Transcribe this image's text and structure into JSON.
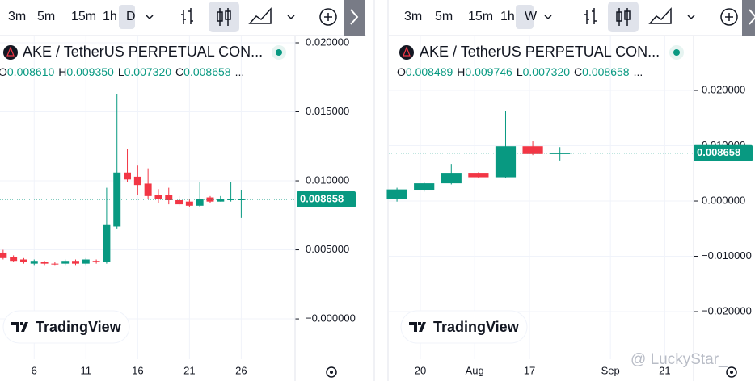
{
  "chart_data": [
    {
      "type": "candlestick",
      "intervals": [
        "3m",
        "5m",
        "15m",
        "1h",
        "D"
      ],
      "active_interval": 4,
      "title": "AKE / TetherUS PERPETUAL CON...",
      "ohlc_legend": [
        {
          "key": "O",
          "value": "0.008610"
        },
        {
          "key": "H",
          "value": "0.009350"
        },
        {
          "key": "L",
          "value": "0.007320"
        },
        {
          "key": "C",
          "value": "0.008658"
        }
      ],
      "legend_more": "...",
      "logo": "TradingView",
      "up_color": "#089981",
      "down_color": "#f23645",
      "grid": true,
      "x": [
        3,
        4,
        5,
        6,
        7,
        8,
        9,
        10,
        11,
        12,
        13,
        14,
        15,
        16,
        17,
        18,
        19,
        20,
        21,
        22,
        23,
        24,
        25,
        26
      ],
      "open": [
        0.0048,
        0.0045,
        0.0043,
        0.004,
        0.0041,
        0.004,
        0.004,
        0.0042,
        0.004,
        0.0042,
        0.0041,
        0.0067,
        0.0106,
        0.0103,
        0.0098,
        0.009,
        0.009,
        0.0086,
        0.0085,
        0.0082,
        0.0088,
        0.0085,
        0.0086,
        0.00861
      ],
      "high": [
        0.005,
        0.0046,
        0.0044,
        0.0043,
        0.0042,
        0.0041,
        0.0043,
        0.0043,
        0.0044,
        0.0043,
        0.0095,
        0.0163,
        0.0123,
        0.0111,
        0.0109,
        0.0094,
        0.0095,
        0.0089,
        0.0087,
        0.0099,
        0.0089,
        0.0089,
        0.0099,
        0.00935
      ],
      "low": [
        0.0043,
        0.0041,
        0.004,
        0.0039,
        0.0039,
        0.0039,
        0.0039,
        0.0039,
        0.0039,
        0.004,
        0.004,
        0.0065,
        0.0099,
        0.009,
        0.0087,
        0.0084,
        0.0083,
        0.0082,
        0.0081,
        0.0081,
        0.0084,
        0.0085,
        0.0085,
        0.00732
      ],
      "close": [
        0.0044,
        0.0042,
        0.0041,
        0.0042,
        0.004,
        0.00398,
        0.0042,
        0.004,
        0.0043,
        0.0041,
        0.0068,
        0.0106,
        0.0101,
        0.0097,
        0.0089,
        0.0087,
        0.0086,
        0.0083,
        0.0082,
        0.0087,
        0.0085,
        0.0087,
        0.00866,
        0.008658
      ],
      "xlim": [
        2.7,
        31.2
      ],
      "xticks": [
        6,
        11,
        16,
        21,
        26
      ],
      "ylim": [
        -0.00292,
        0.020526
      ],
      "yticks": [
        {
          "value": 0.02,
          "label": "0.020000"
        },
        {
          "value": 0.015,
          "label": "0.015000"
        },
        {
          "value": 0.01,
          "label": "0.010000"
        },
        {
          "value": 0.005,
          "label": "0.005000"
        },
        {
          "value": 0,
          "label": "−0.000000"
        }
      ],
      "last_price": {
        "value": 0.008658,
        "label": "0.008658"
      }
    },
    {
      "type": "candlestick",
      "intervals": [
        "3m",
        "5m",
        "15m",
        "1h",
        "W"
      ],
      "active_interval": 4,
      "title": "AKE / TetherUS PERPETUAL CON...",
      "ohlc_legend": [
        {
          "key": "O",
          "value": "0.008489"
        },
        {
          "key": "H",
          "value": "0.009746"
        },
        {
          "key": "L",
          "value": "0.007320"
        },
        {
          "key": "C",
          "value": "0.008658"
        }
      ],
      "legend_more": "...",
      "logo": "TradingView",
      "up_color": "#089981",
      "down_color": "#f23645",
      "grid": true,
      "x": [
        0,
        1,
        2,
        3,
        4,
        5,
        6
      ],
      "open": [
        0.0003,
        0.0019,
        0.0032,
        0.0051,
        0.0043,
        0.0099,
        0.008489
      ],
      "high": [
        0.0024,
        0.0034,
        0.0067,
        0.0052,
        0.0163,
        0.0108,
        0.009746
      ],
      "low": [
        -0.0001,
        0.0017,
        0.003,
        0.0042,
        0.0041,
        0.0083,
        0.00732
      ],
      "close": [
        0.0021,
        0.0032,
        0.0051,
        0.0043,
        0.0099,
        0.0085,
        0.008658
      ],
      "xlim": [
        -0.3,
        10.92
      ],
      "xticks": [
        {
          "value": 0.86,
          "label": "20"
        },
        {
          "value": 2.86,
          "label": "Aug"
        },
        {
          "value": 4.88,
          "label": "17"
        },
        {
          "value": 7.86,
          "label": "Sep"
        },
        {
          "value": 9.86,
          "label": "21"
        }
      ],
      "ylim": [
        -0.02861,
        0.02993
      ],
      "yticks": [
        {
          "value": 0.02,
          "label": "0.020000"
        },
        {
          "value": 0.01,
          "label": "0.010000"
        },
        {
          "value": 0,
          "label": "0.000000"
        },
        {
          "value": -0.01,
          "label": "−0.010000"
        },
        {
          "value": -0.02,
          "label": "−0.020000"
        }
      ],
      "last_price": {
        "value": 0.008658,
        "label": "0.008658"
      }
    }
  ],
  "watermark": "@ LuckyStar_"
}
